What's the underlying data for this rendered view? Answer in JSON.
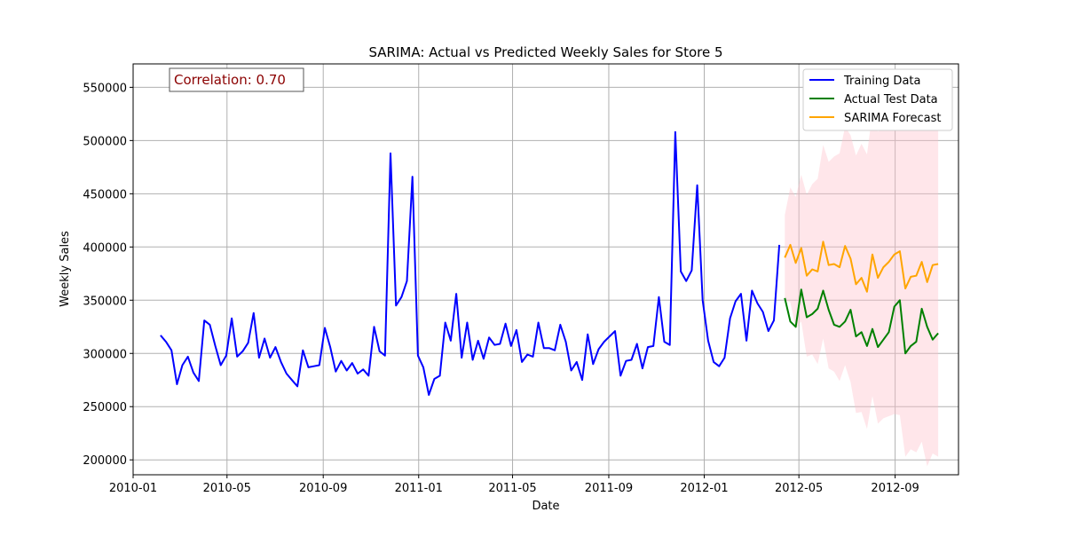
{
  "chart_data": {
    "type": "line",
    "title": "SARIMA: Actual vs Predicted Weekly Sales for Store 5",
    "xlabel": "Date",
    "ylabel": "Weekly Sales",
    "annotation": "Correlation: 0.70",
    "xlim": [
      "2010-01-01",
      "2012-11-21"
    ],
    "ylim": [
      186000,
      572000
    ],
    "x_ticks": [
      "2010-01",
      "2010-05",
      "2010-09",
      "2011-01",
      "2011-05",
      "2011-09",
      "2012-01",
      "2012-05",
      "2012-09"
    ],
    "y_ticks": [
      200000,
      250000,
      300000,
      350000,
      400000,
      450000,
      500000,
      550000
    ],
    "grid": true,
    "legend_position": "top-right",
    "series": [
      {
        "name": "Training Data",
        "color": "#0000ff",
        "x": [
          "2010-02-05",
          "2010-02-12",
          "2010-02-19",
          "2010-02-26",
          "2010-03-05",
          "2010-03-12",
          "2010-03-19",
          "2010-03-26",
          "2010-04-02",
          "2010-04-09",
          "2010-04-16",
          "2010-04-23",
          "2010-04-30",
          "2010-05-07",
          "2010-05-14",
          "2010-05-21",
          "2010-05-28",
          "2010-06-04",
          "2010-06-11",
          "2010-06-18",
          "2010-06-25",
          "2010-07-02",
          "2010-07-09",
          "2010-07-16",
          "2010-07-23",
          "2010-07-30",
          "2010-08-06",
          "2010-08-13",
          "2010-08-20",
          "2010-08-27",
          "2010-09-03",
          "2010-09-10",
          "2010-09-17",
          "2010-09-24",
          "2010-10-01",
          "2010-10-08",
          "2010-10-15",
          "2010-10-22",
          "2010-10-29",
          "2010-11-05",
          "2010-11-12",
          "2010-11-19",
          "2010-11-26",
          "2010-12-03",
          "2010-12-10",
          "2010-12-17",
          "2010-12-24",
          "2010-12-31",
          "2011-01-07",
          "2011-01-14",
          "2011-01-21",
          "2011-01-28",
          "2011-02-04",
          "2011-02-11",
          "2011-02-18",
          "2011-02-25",
          "2011-03-04",
          "2011-03-11",
          "2011-03-18",
          "2011-03-25",
          "2011-04-01",
          "2011-04-08",
          "2011-04-15",
          "2011-04-22",
          "2011-04-29",
          "2011-05-06",
          "2011-05-13",
          "2011-05-20",
          "2011-05-27",
          "2011-06-03",
          "2011-06-10",
          "2011-06-17",
          "2011-06-24",
          "2011-07-01",
          "2011-07-08",
          "2011-07-15",
          "2011-07-22",
          "2011-07-29",
          "2011-08-05",
          "2011-08-12",
          "2011-08-19",
          "2011-08-26",
          "2011-09-02",
          "2011-09-09",
          "2011-09-16",
          "2011-09-23",
          "2011-09-30",
          "2011-10-07",
          "2011-10-14",
          "2011-10-21",
          "2011-10-28",
          "2011-11-04",
          "2011-11-11",
          "2011-11-18",
          "2011-11-25",
          "2011-12-02",
          "2011-12-09",
          "2011-12-16",
          "2011-12-23",
          "2011-12-30",
          "2012-01-06",
          "2012-01-13",
          "2012-01-20",
          "2012-01-27",
          "2012-02-03",
          "2012-02-10",
          "2012-02-17",
          "2012-02-24",
          "2012-03-02",
          "2012-03-09",
          "2012-03-16",
          "2012-03-23",
          "2012-03-30",
          "2012-04-06"
        ],
        "values": [
          317000,
          311000,
          303000,
          271000,
          289000,
          297000,
          282000,
          274000,
          331000,
          327000,
          307000,
          289000,
          298000,
          333000,
          297000,
          302000,
          310000,
          338000,
          296000,
          314000,
          296000,
          306000,
          292000,
          281000,
          275000,
          269000,
          303000,
          287000,
          288000,
          289000,
          324000,
          306000,
          283000,
          293000,
          284000,
          291000,
          281000,
          285000,
          279000,
          325000,
          302000,
          298000,
          488000,
          345000,
          353000,
          368000,
          466000,
          298000,
          287000,
          261000,
          276000,
          279000,
          329000,
          312000,
          356000,
          296000,
          329000,
          294000,
          312000,
          295000,
          315000,
          308000,
          309000,
          328000,
          307000,
          322000,
          292000,
          299000,
          297000,
          329000,
          305000,
          305000,
          303000,
          327000,
          311000,
          284000,
          292000,
          275000,
          318000,
          290000,
          304000,
          311000,
          316000,
          321000,
          279000,
          293000,
          294000,
          309000,
          286000,
          306000,
          307000,
          353000,
          311000,
          308000,
          508000,
          377000,
          368000,
          378000,
          458000,
          350000,
          312000,
          292000,
          288000,
          296000,
          333000,
          349000,
          356000,
          312000,
          359000,
          347000,
          339000,
          321000,
          331000,
          402000
        ]
      },
      {
        "name": "Actual Test Data",
        "color": "#008000",
        "x": [
          "2012-04-13",
          "2012-04-20",
          "2012-04-27",
          "2012-05-04",
          "2012-05-11",
          "2012-05-18",
          "2012-05-25",
          "2012-06-01",
          "2012-06-08",
          "2012-06-15",
          "2012-06-22",
          "2012-06-29",
          "2012-07-06",
          "2012-07-13",
          "2012-07-20",
          "2012-07-27",
          "2012-08-03",
          "2012-08-10",
          "2012-08-17",
          "2012-08-24",
          "2012-08-31",
          "2012-09-07",
          "2012-09-14",
          "2012-09-21",
          "2012-09-28",
          "2012-10-05",
          "2012-10-12",
          "2012-10-19",
          "2012-10-26"
        ],
        "values": [
          352000,
          330000,
          325000,
          360000,
          334000,
          337000,
          342000,
          359000,
          341000,
          327000,
          325000,
          330000,
          341000,
          316000,
          320000,
          307000,
          323000,
          306000,
          313000,
          320000,
          344000,
          350000,
          300000,
          307000,
          311000,
          342000,
          325000,
          313000,
          319000
        ]
      },
      {
        "name": "SARIMA Forecast",
        "color": "#ffa500",
        "x": [
          "2012-04-13",
          "2012-04-20",
          "2012-04-27",
          "2012-05-04",
          "2012-05-11",
          "2012-05-18",
          "2012-05-25",
          "2012-06-01",
          "2012-06-08",
          "2012-06-15",
          "2012-06-22",
          "2012-06-29",
          "2012-07-06",
          "2012-07-13",
          "2012-07-20",
          "2012-07-27",
          "2012-08-03",
          "2012-08-10",
          "2012-08-17",
          "2012-08-24",
          "2012-08-31",
          "2012-09-07",
          "2012-09-14",
          "2012-09-21",
          "2012-09-28",
          "2012-10-05",
          "2012-10-12",
          "2012-10-19",
          "2012-10-26"
        ],
        "values": [
          390000,
          402000,
          385000,
          399000,
          373000,
          379000,
          377000,
          405000,
          383000,
          384000,
          381000,
          401000,
          389000,
          365000,
          371000,
          358000,
          393000,
          371000,
          381000,
          386000,
          393000,
          396000,
          361000,
          372000,
          373000,
          386000,
          367000,
          383000,
          384000
        ],
        "ci_lower": [
          430000,
          456000,
          447000,
          468000,
          449000,
          459000,
          464000,
          496000,
          480000,
          485000,
          488000,
          513000,
          505000,
          486000,
          497000,
          487000,
          526000,
          508000,
          523000,
          531000,
          543000,
          550000,
          519000,
          534000,
          539000,
          555000,
          540000,
          560000,
          565000
        ],
        "ci_upper_note": "",
        "ci_low": [
          350000,
          348000,
          323000,
          330000,
          297000,
          299000,
          290000,
          314000,
          286000,
          283000,
          274000,
          289000,
          273000,
          244000,
          245000,
          229000,
          260000,
          234000,
          239000,
          241000,
          243000,
          242000,
          203000,
          210000,
          207000,
          217000,
          194000,
          206000,
          203000
        ]
      }
    ]
  }
}
